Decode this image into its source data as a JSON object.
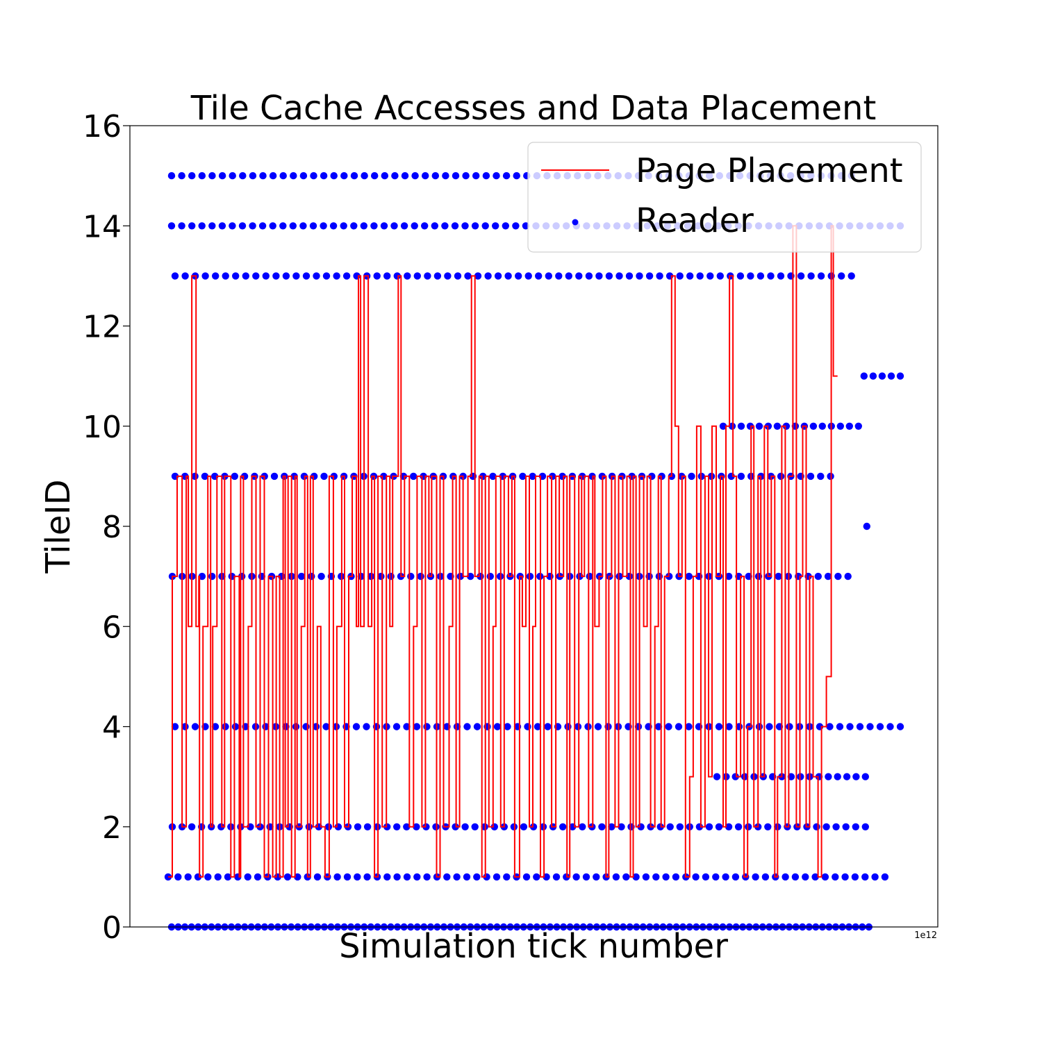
{
  "chart_data": {
    "type": "scatter",
    "title": "Tile Cache Accesses and Data Placement",
    "xlabel": "Simulation tick number",
    "ylabel": "TileID",
    "x_offset_label": "1e12",
    "x_tick_labels_visible": false,
    "ylim": [
      0,
      16
    ],
    "yticks": [
      0,
      2,
      4,
      6,
      8,
      10,
      12,
      14,
      16
    ],
    "xlim": [
      0,
      1000
    ],
    "grid": false,
    "legend": {
      "placement": "top-right"
    },
    "colors": {
      "placement": "#ff0000",
      "reader": "#0000ff"
    },
    "series": [
      {
        "name": "Page Placement",
        "type": "step-line",
        "color": "#ff0000",
        "x": [
          50,
          56,
          63,
          70,
          76,
          79,
          84,
          90,
          94,
          95,
          100,
          107,
          111,
          114,
          120,
          127,
          131,
          140,
          145,
          152,
          154,
          158,
          165,
          170,
          176,
          182,
          188,
          194,
          200,
          205,
          210,
          215,
          218,
          222,
          227,
          232,
          235,
          241,
          246,
          250,
          254,
          258,
          264,
          269,
          275,
          281,
          287,
          292,
          299,
          303,
          309,
          314,
          320,
          323,
          326,
          331,
          337,
          342,
          346,
          351,
          357,
          363,
          368,
          372,
          380,
          384,
          389,
          396,
          402,
          407,
          414,
          419,
          424,
          428,
          435,
          440,
          445,
          453,
          458,
          463,
          468,
          473,
          480,
          485,
          490,
          496,
          500,
          505,
          510,
          516,
          520,
          527,
          532,
          538,
          543,
          547,
          554,
          558,
          563,
          568,
          573,
          577,
          584,
          589,
          594,
          600,
          606,
          611,
          617,
          622,
          626,
          633,
          639,
          643,
          647,
          653,
          659,
          662,
          668,
          673,
          678,
          682,
          686,
          691,
          696,
          702,
          708,
          713,
          717,
          721,
          726,
          732,
          737,
          742,
          748,
          753,
          757,
          762,
          768,
          772,
          777,
          782,
          787,
          792,
          798,
          803,
          808,
          814,
          820,
          825,
          830,
          836,
          842,
          846,
          850,
          855,
          860,
          865,
          871,
          876,
          881,
          886,
          890,
          896,
          900,
          905,
          910,
          915,
          920,
          924,
          930,
          935,
          940,
          946,
          951,
          956,
          960,
          965,
          970,
          975,
          982,
          987,
          994,
          1001,
          1004,
          1010
        ],
        "y": [
          1,
          7,
          9,
          2,
          9,
          6,
          13,
          6,
          7,
          1,
          6,
          9,
          2,
          6,
          9,
          2,
          9,
          1,
          7,
          1,
          9,
          2,
          6,
          9,
          2,
          9,
          1,
          7,
          1,
          7,
          1,
          9,
          2,
          9,
          1,
          9,
          2,
          6,
          9,
          1,
          9,
          2,
          6,
          2,
          1,
          9,
          2,
          6,
          9,
          2,
          7,
          9,
          6,
          13,
          6,
          13,
          6,
          9,
          1,
          9,
          2,
          9,
          6,
          9,
          13,
          7,
          9,
          2,
          6,
          9,
          2,
          9,
          7,
          9,
          1,
          9,
          2,
          6,
          9,
          2,
          9,
          7,
          9,
          13,
          7,
          9,
          1,
          9,
          2,
          6,
          9,
          2,
          9,
          7,
          9,
          1,
          7,
          6,
          9,
          2,
          6,
          9,
          1,
          7,
          9,
          2,
          9,
          7,
          9,
          1,
          9,
          2,
          9,
          7,
          9,
          2,
          9,
          6,
          7,
          9,
          1,
          7,
          9,
          2,
          9,
          7,
          9,
          1,
          9,
          2,
          9,
          6,
          9,
          2,
          6,
          9,
          2,
          7,
          9,
          13,
          10,
          7,
          9,
          1,
          3,
          7,
          10,
          2,
          9,
          3,
          10,
          7,
          9,
          2,
          10,
          13,
          9,
          3,
          7,
          1,
          4,
          10,
          2,
          9,
          3,
          10,
          7,
          9,
          1,
          3,
          10,
          2,
          9,
          14,
          2,
          7,
          10,
          2,
          7,
          3,
          1,
          4,
          5,
          14,
          11,
          11
        ]
      },
      {
        "name": "Reader",
        "type": "scatter",
        "color": "#0000ff",
        "tracks": [
          {
            "y": 0,
            "x_start": 55,
            "x_end": 1055,
            "step": 9.5
          },
          {
            "y": 1,
            "x_start": 50,
            "x_end": 1078,
            "step": 14.2
          },
          {
            "y": 2,
            "x_start": 56,
            "x_end": 1050,
            "step": 14.0
          },
          {
            "y": 3,
            "x_start": 837,
            "x_end": 1050,
            "step": 13.5
          },
          {
            "y": 4,
            "x_start": 60,
            "x_end": 1100,
            "step": 14.5
          },
          {
            "y": 7,
            "x_start": 56,
            "x_end": 1025,
            "step": 14.2
          },
          {
            "y": 8,
            "x_start": 1052,
            "x_end": 1052,
            "step": 1
          },
          {
            "y": 9,
            "x_start": 60,
            "x_end": 1000,
            "step": 14.3
          },
          {
            "y": 10,
            "x_start": 846,
            "x_end": 1040,
            "step": 13.0
          },
          {
            "y": 11,
            "x_start": 1048,
            "x_end": 1100,
            "step": 13.0
          },
          {
            "y": 13,
            "x_start": 60,
            "x_end": 1030,
            "step": 14.5
          },
          {
            "y": 14,
            "x_start": 55,
            "x_end": 1100,
            "step": 14.5
          },
          {
            "y": 15,
            "x_start": 55,
            "x_end": 1030,
            "step": 14.5
          }
        ]
      }
    ]
  }
}
